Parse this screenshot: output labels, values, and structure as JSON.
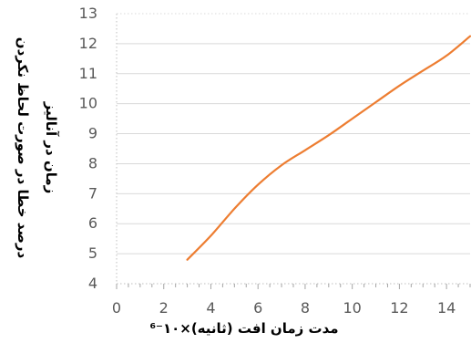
{
  "chart_data": {
    "type": "line",
    "xlabel": "مدت زمان افت  (ثانیه)×۱۰⁻⁶",
    "ylabel_line1": "درصد خطا در صورت لحاظ نکردن",
    "ylabel_line2": "زمان در آنالیز",
    "xlim": [
      0,
      15
    ],
    "ylim": [
      4,
      13
    ],
    "x_ticks": [
      0,
      2,
      4,
      6,
      8,
      10,
      12,
      14
    ],
    "y_ticks": [
      4,
      5,
      6,
      7,
      8,
      9,
      10,
      11,
      12,
      13
    ],
    "grid": true,
    "line_color": "#ED7D31",
    "grid_color": "#D9D9D9",
    "series": [
      {
        "x": [
          3,
          4,
          5,
          6,
          7,
          8,
          9,
          10,
          11,
          12,
          13,
          14,
          15
        ],
        "y": [
          4.8,
          5.6,
          6.5,
          7.3,
          7.95,
          8.45,
          8.95,
          9.5,
          10.05,
          10.6,
          11.1,
          11.6,
          12.25
        ]
      }
    ]
  }
}
